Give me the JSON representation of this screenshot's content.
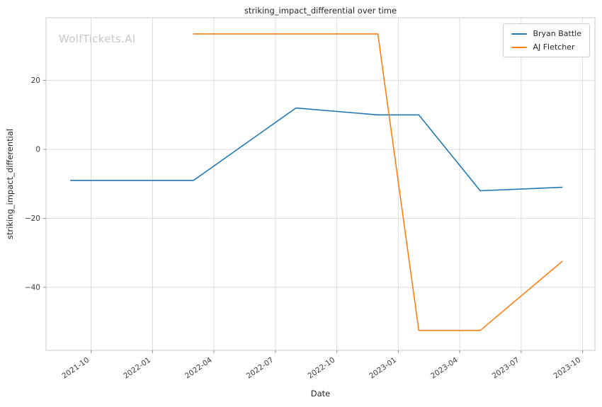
{
  "watermark": "WolfTickets.AI",
  "chart_data": {
    "type": "line",
    "title": "striking_impact_differential over time",
    "xlabel": "Date",
    "ylabel": "striking_impact_differential",
    "grid": true,
    "legend_position": "upper right",
    "x_tick_labels": [
      "2021-10",
      "2022-01",
      "2022-04",
      "2022-07",
      "2022-10",
      "2023-01",
      "2023-04",
      "2023-07",
      "2023-10"
    ],
    "y_ticks": [
      20,
      0,
      -20,
      -40
    ],
    "xlim_months": [
      6.8,
      33.6
    ],
    "ylim": [
      -58.3,
      38.2
    ],
    "series": [
      {
        "name": "Bryan Battle",
        "color": "#1f77b4",
        "points": [
          {
            "date": "2021-09",
            "value": -9
          },
          {
            "date": "2022-03",
            "value": -9
          },
          {
            "date": "2022-08",
            "value": 12
          },
          {
            "date": "2022-12",
            "value": 10
          },
          {
            "date": "2023-02",
            "value": 10
          },
          {
            "date": "2023-05",
            "value": -12
          },
          {
            "date": "2023-09",
            "value": -11
          }
        ]
      },
      {
        "name": "AJ Fletcher",
        "color": "#ff7f0e",
        "points": [
          {
            "date": "2022-03",
            "value": 33.5
          },
          {
            "date": "2022-12",
            "value": 33.5
          },
          {
            "date": "2023-02",
            "value": -52.5
          },
          {
            "date": "2023-05",
            "value": -52.5
          },
          {
            "date": "2023-09",
            "value": -32.5
          }
        ]
      }
    ]
  }
}
